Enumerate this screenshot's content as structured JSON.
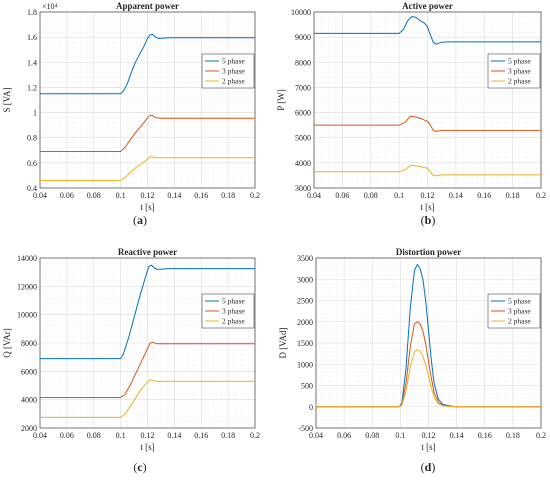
{
  "colors": {
    "5 phase": "#0072BD",
    "3 phase": "#D95319",
    "2 phase": "#EDB120"
  },
  "legend_placement": "right, upper-middle",
  "grid": "major + minor dotted",
  "chart_data": [
    {
      "panel": "a",
      "caption": {
        "open": "(",
        "letter": "a",
        "close": ")"
      },
      "type": "line",
      "title": "Apparent power",
      "xlabel": "t [s]",
      "ylabel": "S [VA]",
      "exponent_label": "×10⁴",
      "xlim": [
        0.04,
        0.2
      ],
      "ylim": [
        0.4,
        1.8
      ],
      "xticks": [
        0.04,
        0.06,
        0.08,
        0.1,
        0.12,
        0.14,
        0.16,
        0.18,
        0.2
      ],
      "xtick_labels": [
        "0.04",
        "0.06",
        "0.08",
        "0.1",
        "0.12",
        "0.14",
        "0.16",
        "0.18",
        "0.2"
      ],
      "yticks": [
        0.4,
        0.6,
        0.8,
        1,
        1.2,
        1.4,
        1.6,
        1.8
      ],
      "ytick_labels": [
        "0.4",
        "0.6",
        "0.8",
        "1",
        "1.2",
        "1.4",
        "1.6",
        "1.8"
      ],
      "series": [
        {
          "name": "5 phase",
          "x": [
            0.04,
            0.1,
            0.102,
            0.105,
            0.108,
            0.111,
            0.114,
            0.117,
            0.12,
            0.122,
            0.124,
            0.126,
            0.128,
            0.13,
            0.135,
            0.2
          ],
          "y": [
            1.15,
            1.15,
            1.17,
            1.23,
            1.32,
            1.4,
            1.46,
            1.52,
            1.59,
            1.62,
            1.62,
            1.6,
            1.59,
            1.59,
            1.595,
            1.595
          ]
        },
        {
          "name": "3 phase",
          "x": [
            0.04,
            0.1,
            0.103,
            0.107,
            0.111,
            0.115,
            0.118,
            0.121,
            0.123,
            0.126,
            0.13,
            0.135,
            0.2
          ],
          "y": [
            0.69,
            0.69,
            0.72,
            0.78,
            0.84,
            0.89,
            0.93,
            0.97,
            0.98,
            0.96,
            0.955,
            0.955,
            0.955
          ]
        },
        {
          "name": "2 phase",
          "x": [
            0.04,
            0.1,
            0.103,
            0.107,
            0.111,
            0.115,
            0.119,
            0.122,
            0.125,
            0.128,
            0.132,
            0.2
          ],
          "y": [
            0.46,
            0.46,
            0.48,
            0.52,
            0.56,
            0.59,
            0.62,
            0.65,
            0.645,
            0.64,
            0.64,
            0.64
          ]
        }
      ]
    },
    {
      "panel": "b",
      "caption": {
        "open": "(",
        "letter": "b",
        "close": ")"
      },
      "type": "line",
      "title": "Active power",
      "xlabel": "t [s]",
      "ylabel": "P [W]",
      "xlim": [
        0.04,
        0.2
      ],
      "ylim": [
        3000,
        10000
      ],
      "xticks": [
        0.04,
        0.06,
        0.08,
        0.1,
        0.12,
        0.14,
        0.16,
        0.18,
        0.2
      ],
      "xtick_labels": [
        "0.04",
        "0.06",
        "0.08",
        "0.1",
        "0.12",
        "0.14",
        "0.16",
        "0.18",
        "0.2"
      ],
      "yticks": [
        3000,
        4000,
        5000,
        6000,
        7000,
        8000,
        9000,
        10000
      ],
      "ytick_labels": [
        "3000",
        "4000",
        "5000",
        "6000",
        "7000",
        "8000",
        "9000",
        "10000"
      ],
      "series": [
        {
          "name": "5 phase",
          "x": [
            0.04,
            0.1,
            0.103,
            0.106,
            0.109,
            0.112,
            0.115,
            0.118,
            0.12,
            0.122,
            0.124,
            0.126,
            0.128,
            0.13,
            0.135,
            0.2
          ],
          "y": [
            9150,
            9150,
            9300,
            9650,
            9820,
            9780,
            9650,
            9550,
            9400,
            9100,
            8800,
            8720,
            8760,
            8800,
            8810,
            8810
          ]
        },
        {
          "name": "3 phase",
          "x": [
            0.04,
            0.1,
            0.104,
            0.108,
            0.112,
            0.116,
            0.12,
            0.122,
            0.124,
            0.126,
            0.128,
            0.13,
            0.135,
            0.2
          ],
          "y": [
            5500,
            5500,
            5600,
            5860,
            5820,
            5750,
            5650,
            5500,
            5300,
            5250,
            5270,
            5290,
            5290,
            5290
          ]
        },
        {
          "name": "2 phase",
          "x": [
            0.04,
            0.1,
            0.104,
            0.108,
            0.112,
            0.116,
            0.12,
            0.122,
            0.124,
            0.126,
            0.128,
            0.13,
            0.135,
            0.2
          ],
          "y": [
            3650,
            3650,
            3720,
            3900,
            3880,
            3840,
            3780,
            3650,
            3500,
            3480,
            3500,
            3520,
            3520,
            3520
          ]
        }
      ]
    },
    {
      "panel": "c",
      "caption": {
        "open": "(",
        "letter": "c",
        "close": ")"
      },
      "type": "line",
      "title": "Reactive power",
      "xlabel": "t [s]",
      "ylabel": "Q [VAr]",
      "xlim": [
        0.04,
        0.2
      ],
      "ylim": [
        2000,
        14000
      ],
      "xticks": [
        0.04,
        0.06,
        0.08,
        0.1,
        0.12,
        0.14,
        0.16,
        0.18,
        0.2
      ],
      "xtick_labels": [
        "0.04",
        "0.06",
        "0.08",
        "0.1",
        "0.12",
        "0.14",
        "0.16",
        "0.18",
        "0.2"
      ],
      "yticks": [
        2000,
        4000,
        6000,
        8000,
        10000,
        12000,
        14000
      ],
      "ytick_labels": [
        "2000",
        "4000",
        "6000",
        "8000",
        "10000",
        "12000",
        "14000"
      ],
      "series": [
        {
          "name": "5 phase",
          "x": [
            0.04,
            0.1,
            0.102,
            0.106,
            0.11,
            0.114,
            0.118,
            0.121,
            0.123,
            0.125,
            0.127,
            0.13,
            0.135,
            0.2
          ],
          "y": [
            6900,
            6900,
            7200,
            8400,
            9800,
            11200,
            12500,
            13400,
            13500,
            13300,
            13200,
            13200,
            13250,
            13250
          ]
        },
        {
          "name": "3 phase",
          "x": [
            0.04,
            0.1,
            0.103,
            0.107,
            0.111,
            0.115,
            0.119,
            0.122,
            0.124,
            0.127,
            0.13,
            0.135,
            0.2
          ],
          "y": [
            4150,
            4150,
            4350,
            5000,
            5800,
            6600,
            7400,
            8000,
            8050,
            7950,
            7950,
            7950,
            7950
          ]
        },
        {
          "name": "2 phase",
          "x": [
            0.04,
            0.1,
            0.103,
            0.107,
            0.111,
            0.115,
            0.119,
            0.122,
            0.124,
            0.127,
            0.13,
            0.2
          ],
          "y": [
            2750,
            2750,
            2950,
            3500,
            4100,
            4700,
            5150,
            5400,
            5350,
            5300,
            5300,
            5300
          ]
        }
      ]
    },
    {
      "panel": "d",
      "caption": {
        "open": "(",
        "letter": "d",
        "close": ")"
      },
      "type": "line",
      "title": "Distortion power",
      "xlabel": "t [s]",
      "ylabel": "D [VAd]",
      "xlim": [
        0.04,
        0.2
      ],
      "ylim": [
        -500,
        3500
      ],
      "xticks": [
        0.04,
        0.06,
        0.08,
        0.1,
        0.12,
        0.14,
        0.16,
        0.18,
        0.2
      ],
      "xtick_labels": [
        "0.04",
        "0.06",
        "0.08",
        "0.1",
        "0.12",
        "0.14",
        "0.16",
        "0.18",
        "0.2"
      ],
      "yticks": [
        -500,
        0,
        500,
        1000,
        1500,
        2000,
        2500,
        3000,
        3500
      ],
      "ytick_labels": [
        "-500",
        "0",
        "500",
        "1000",
        "1500",
        "2000",
        "2500",
        "3000",
        "3500"
      ],
      "series": [
        {
          "name": "5 phase",
          "x": [
            0.04,
            0.099,
            0.101,
            0.104,
            0.107,
            0.11,
            0.112,
            0.114,
            0.116,
            0.118,
            0.12,
            0.122,
            0.124,
            0.127,
            0.13,
            0.135,
            0.14,
            0.2
          ],
          "y": [
            0,
            0,
            80,
            900,
            2300,
            3200,
            3350,
            3250,
            3000,
            2500,
            1800,
            1100,
            550,
            180,
            60,
            20,
            0,
            0
          ]
        },
        {
          "name": "3 phase",
          "x": [
            0.04,
            0.099,
            0.101,
            0.104,
            0.107,
            0.11,
            0.112,
            0.114,
            0.116,
            0.118,
            0.12,
            0.122,
            0.124,
            0.127,
            0.13,
            0.135,
            0.14,
            0.2
          ],
          "y": [
            0,
            0,
            50,
            550,
            1400,
            1950,
            2000,
            1950,
            1780,
            1480,
            1080,
            680,
            330,
            110,
            35,
            10,
            0,
            0
          ]
        },
        {
          "name": "2 phase",
          "x": [
            0.04,
            0.099,
            0.101,
            0.104,
            0.107,
            0.11,
            0.112,
            0.114,
            0.116,
            0.118,
            0.12,
            0.122,
            0.124,
            0.127,
            0.13,
            0.135,
            0.14,
            0.2
          ],
          "y": [
            0,
            0,
            30,
            370,
            930,
            1300,
            1340,
            1300,
            1190,
            990,
            720,
            450,
            220,
            70,
            25,
            5,
            0,
            0
          ]
        }
      ]
    }
  ]
}
